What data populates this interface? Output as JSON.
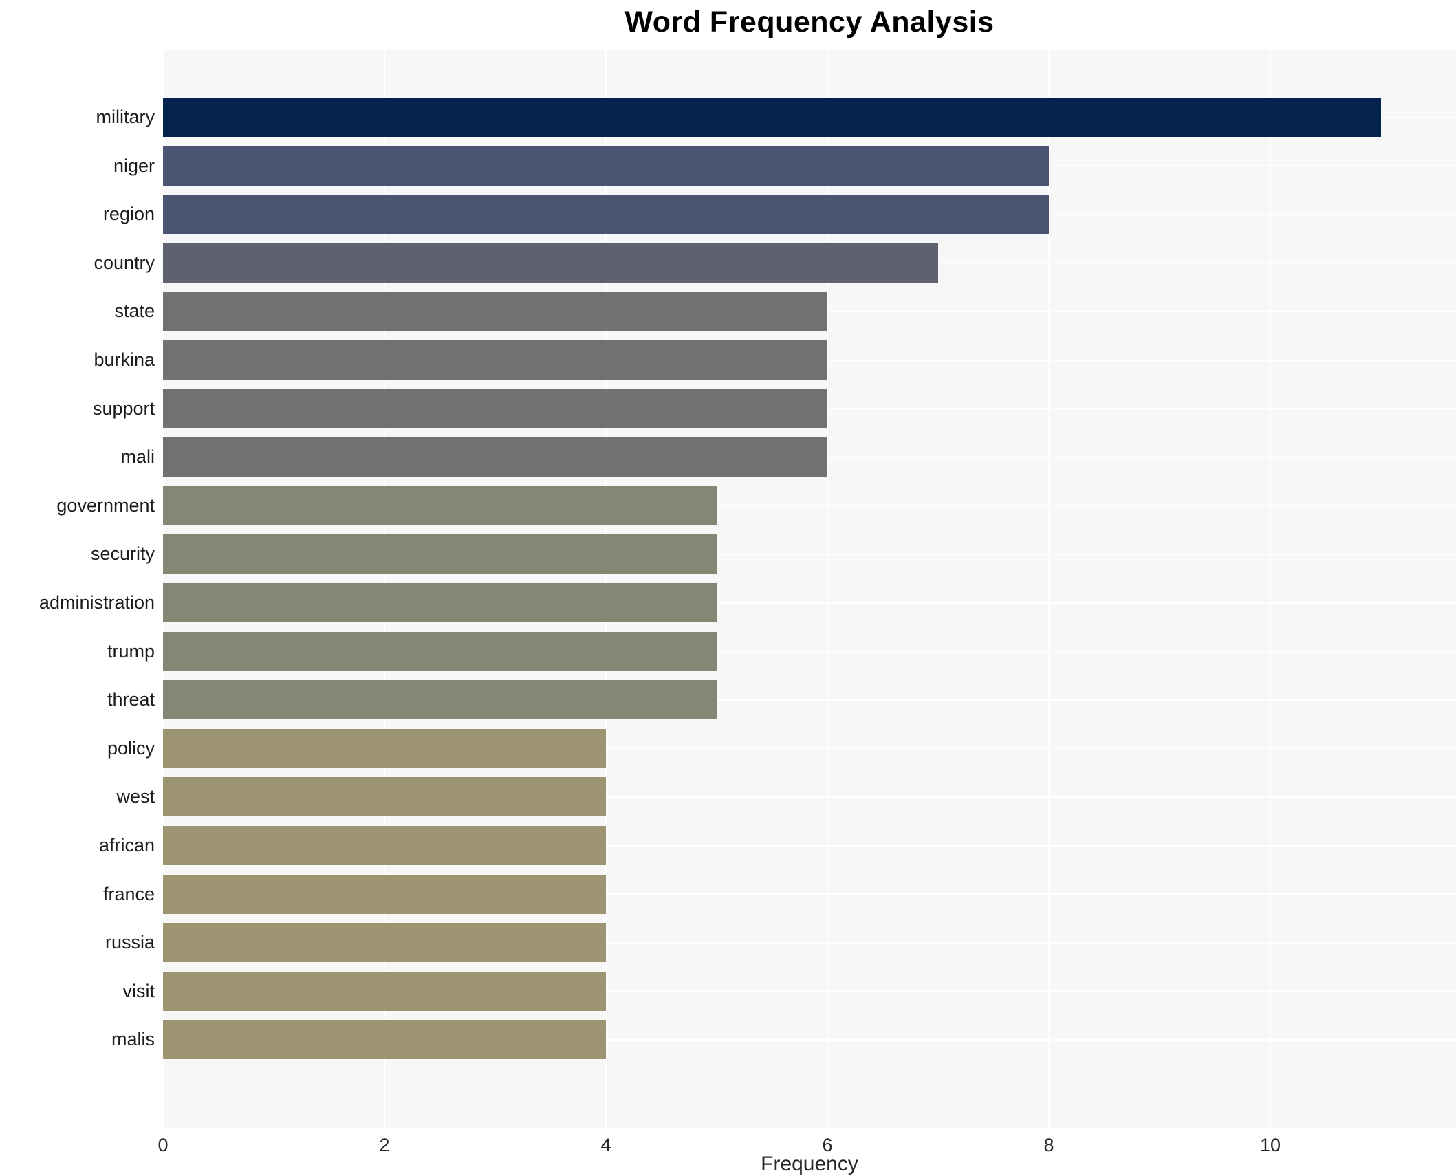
{
  "chart_data": {
    "type": "bar",
    "orientation": "horizontal",
    "title": "Word Frequency Analysis",
    "xlabel": "Frequency",
    "ylabel": "",
    "xlim": [
      0,
      11.68
    ],
    "xticks": [
      0,
      2,
      4,
      6,
      8,
      10
    ],
    "grid": true,
    "legend": false,
    "plot_background": "#f7f7f7",
    "gridline_color": "#ffffff",
    "categories": [
      "military",
      "niger",
      "region",
      "country",
      "state",
      "burkina",
      "support",
      "mali",
      "government",
      "security",
      "administration",
      "trump",
      "threat",
      "policy",
      "west",
      "african",
      "france",
      "russia",
      "visit",
      "malis"
    ],
    "values": [
      11,
      8,
      8,
      7,
      6,
      6,
      6,
      6,
      5,
      5,
      5,
      5,
      5,
      4,
      4,
      4,
      4,
      4,
      4,
      4
    ],
    "bar_colors": [
      "#03234e",
      "#4b5471",
      "#4b5471",
      "#5e626e",
      "#717173",
      "#717173",
      "#717173",
      "#717173",
      "#868675",
      "#868675",
      "#868675",
      "#868675",
      "#868675",
      "#9d9472",
      "#9d9472",
      "#9d9472",
      "#9d9472",
      "#9d9472",
      "#9d9472",
      "#9d9472"
    ]
  }
}
